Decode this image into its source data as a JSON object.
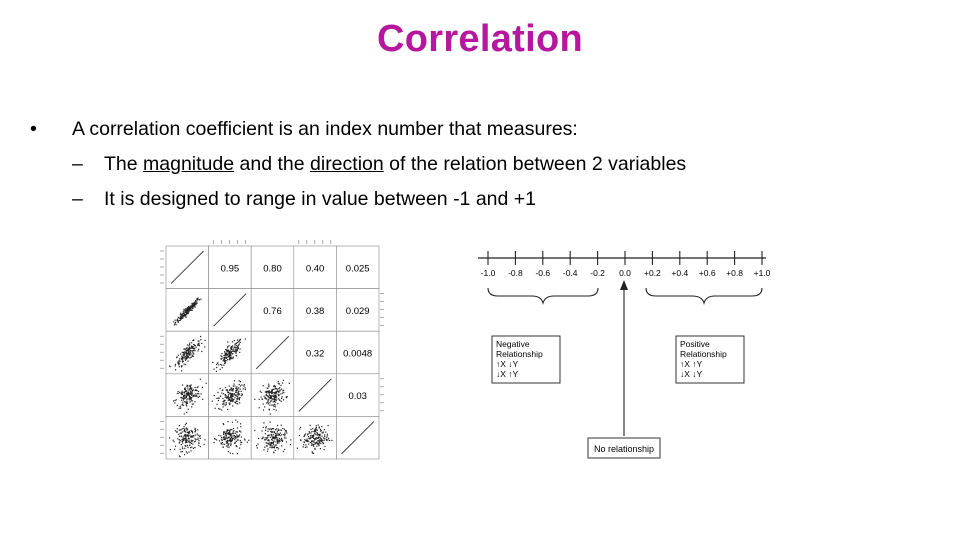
{
  "slide": {
    "title": "Correlation",
    "bullet_main": "A correlation coefficient is an index number that measures:",
    "sub1": {
      "pre": "The ",
      "u1": "magnitude",
      "mid": " and the ",
      "u2": "direction",
      "post": " of the relation between 2 variables"
    },
    "sub2": "It is designed to range in value between -1 and +1"
  },
  "matrix": {
    "upper_values": [
      [
        "0.95",
        "0.80",
        "0.40",
        "0.025"
      ],
      [
        "0.76",
        "0.38",
        "0.029"
      ],
      [
        "0.32",
        "0.0048"
      ],
      [
        "0.03"
      ]
    ]
  },
  "scale": {
    "ticks": [
      "-1.0",
      "-0.8",
      "-0.6",
      "-0.4",
      "-0.2",
      "0.0",
      "+0.2",
      "+0.4",
      "+0.6",
      "+0.8",
      "+1.0"
    ],
    "negative_box": [
      "Negative",
      "Relationship",
      "↑X ↓Y",
      "↓X ↑Y"
    ],
    "positive_box": [
      "Positive",
      "Relationship",
      "↑X ↑Y",
      "↓X ↓Y"
    ],
    "no_relationship": "No relationship"
  },
  "colors": {
    "title": "#b5179e"
  }
}
